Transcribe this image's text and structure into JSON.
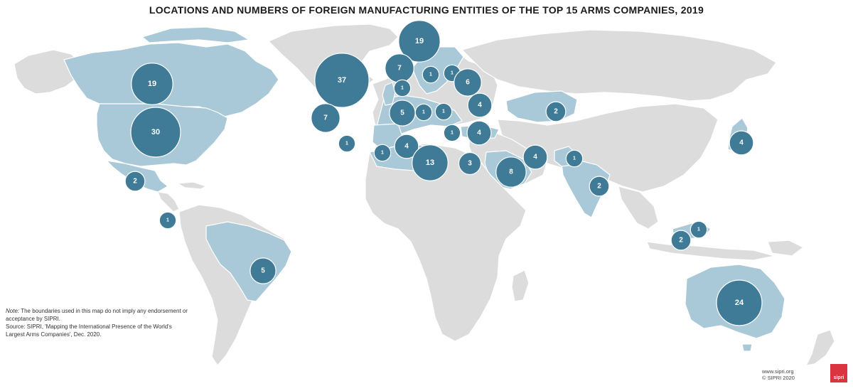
{
  "title": "LOCATIONS AND NUMBERS OF FOREIGN MANUFACTURING ENTITIES OF THE TOP 15 ARMS COMPANIES, 2019",
  "colors": {
    "land_default": "#dcdcdc",
    "land_highlight": "#a9c8d8",
    "bubble": "#3f7a96",
    "logo": "#d9343f"
  },
  "legend_values": [
    "37",
    "30",
    "24",
    "19",
    "13",
    "8",
    "7",
    "6",
    "5",
    "4",
    "3",
    "2",
    "1"
  ],
  "bubbles": [
    {
      "id": "canada",
      "value": 19
    },
    {
      "id": "usa",
      "value": 30
    },
    {
      "id": "mexico",
      "value": 2
    },
    {
      "id": "panama",
      "value": 1
    },
    {
      "id": "brazil",
      "value": 5
    },
    {
      "id": "uk",
      "value": 37
    },
    {
      "id": "norway",
      "value": 19
    },
    {
      "id": "sweden",
      "value": 7
    },
    {
      "id": "finland",
      "value": 1
    },
    {
      "id": "estonia",
      "value": 1
    },
    {
      "id": "poland",
      "value": 6
    },
    {
      "id": "netherlands",
      "value": 1
    },
    {
      "id": "germany-east",
      "value": 4
    },
    {
      "id": "france",
      "value": 5
    },
    {
      "id": "switzerland",
      "value": 1
    },
    {
      "id": "italy",
      "value": 1
    },
    {
      "id": "spain",
      "value": 7
    },
    {
      "id": "portugal",
      "value": 1
    },
    {
      "id": "greece",
      "value": 1
    },
    {
      "id": "turkey",
      "value": 4
    },
    {
      "id": "morocco",
      "value": 1
    },
    {
      "id": "algeria",
      "value": 4
    },
    {
      "id": "libya",
      "value": 13
    },
    {
      "id": "egypt",
      "value": 3
    },
    {
      "id": "saudi-arabia",
      "value": 8
    },
    {
      "id": "uae",
      "value": 4
    },
    {
      "id": "pakistan",
      "value": 1
    },
    {
      "id": "kazakhstan",
      "value": 2
    },
    {
      "id": "india",
      "value": 2
    },
    {
      "id": "japan",
      "value": 4
    },
    {
      "id": "malaysia",
      "value": 1
    },
    {
      "id": "singapore",
      "value": 2
    },
    {
      "id": "australia",
      "value": 24
    }
  ],
  "note": {
    "prefix": "Note:",
    "text": " The boundaries used in this map do not imply any endorsement or acceptance by SIPRI.",
    "source": "Source: SIPRI, 'Mapping the International Presence of the World's Largest Arms Companies', Dec. 2020."
  },
  "footer": {
    "url": "www.sipri.org",
    "copyright": "© SIPRI 2020",
    "logo_text": "sipri"
  }
}
